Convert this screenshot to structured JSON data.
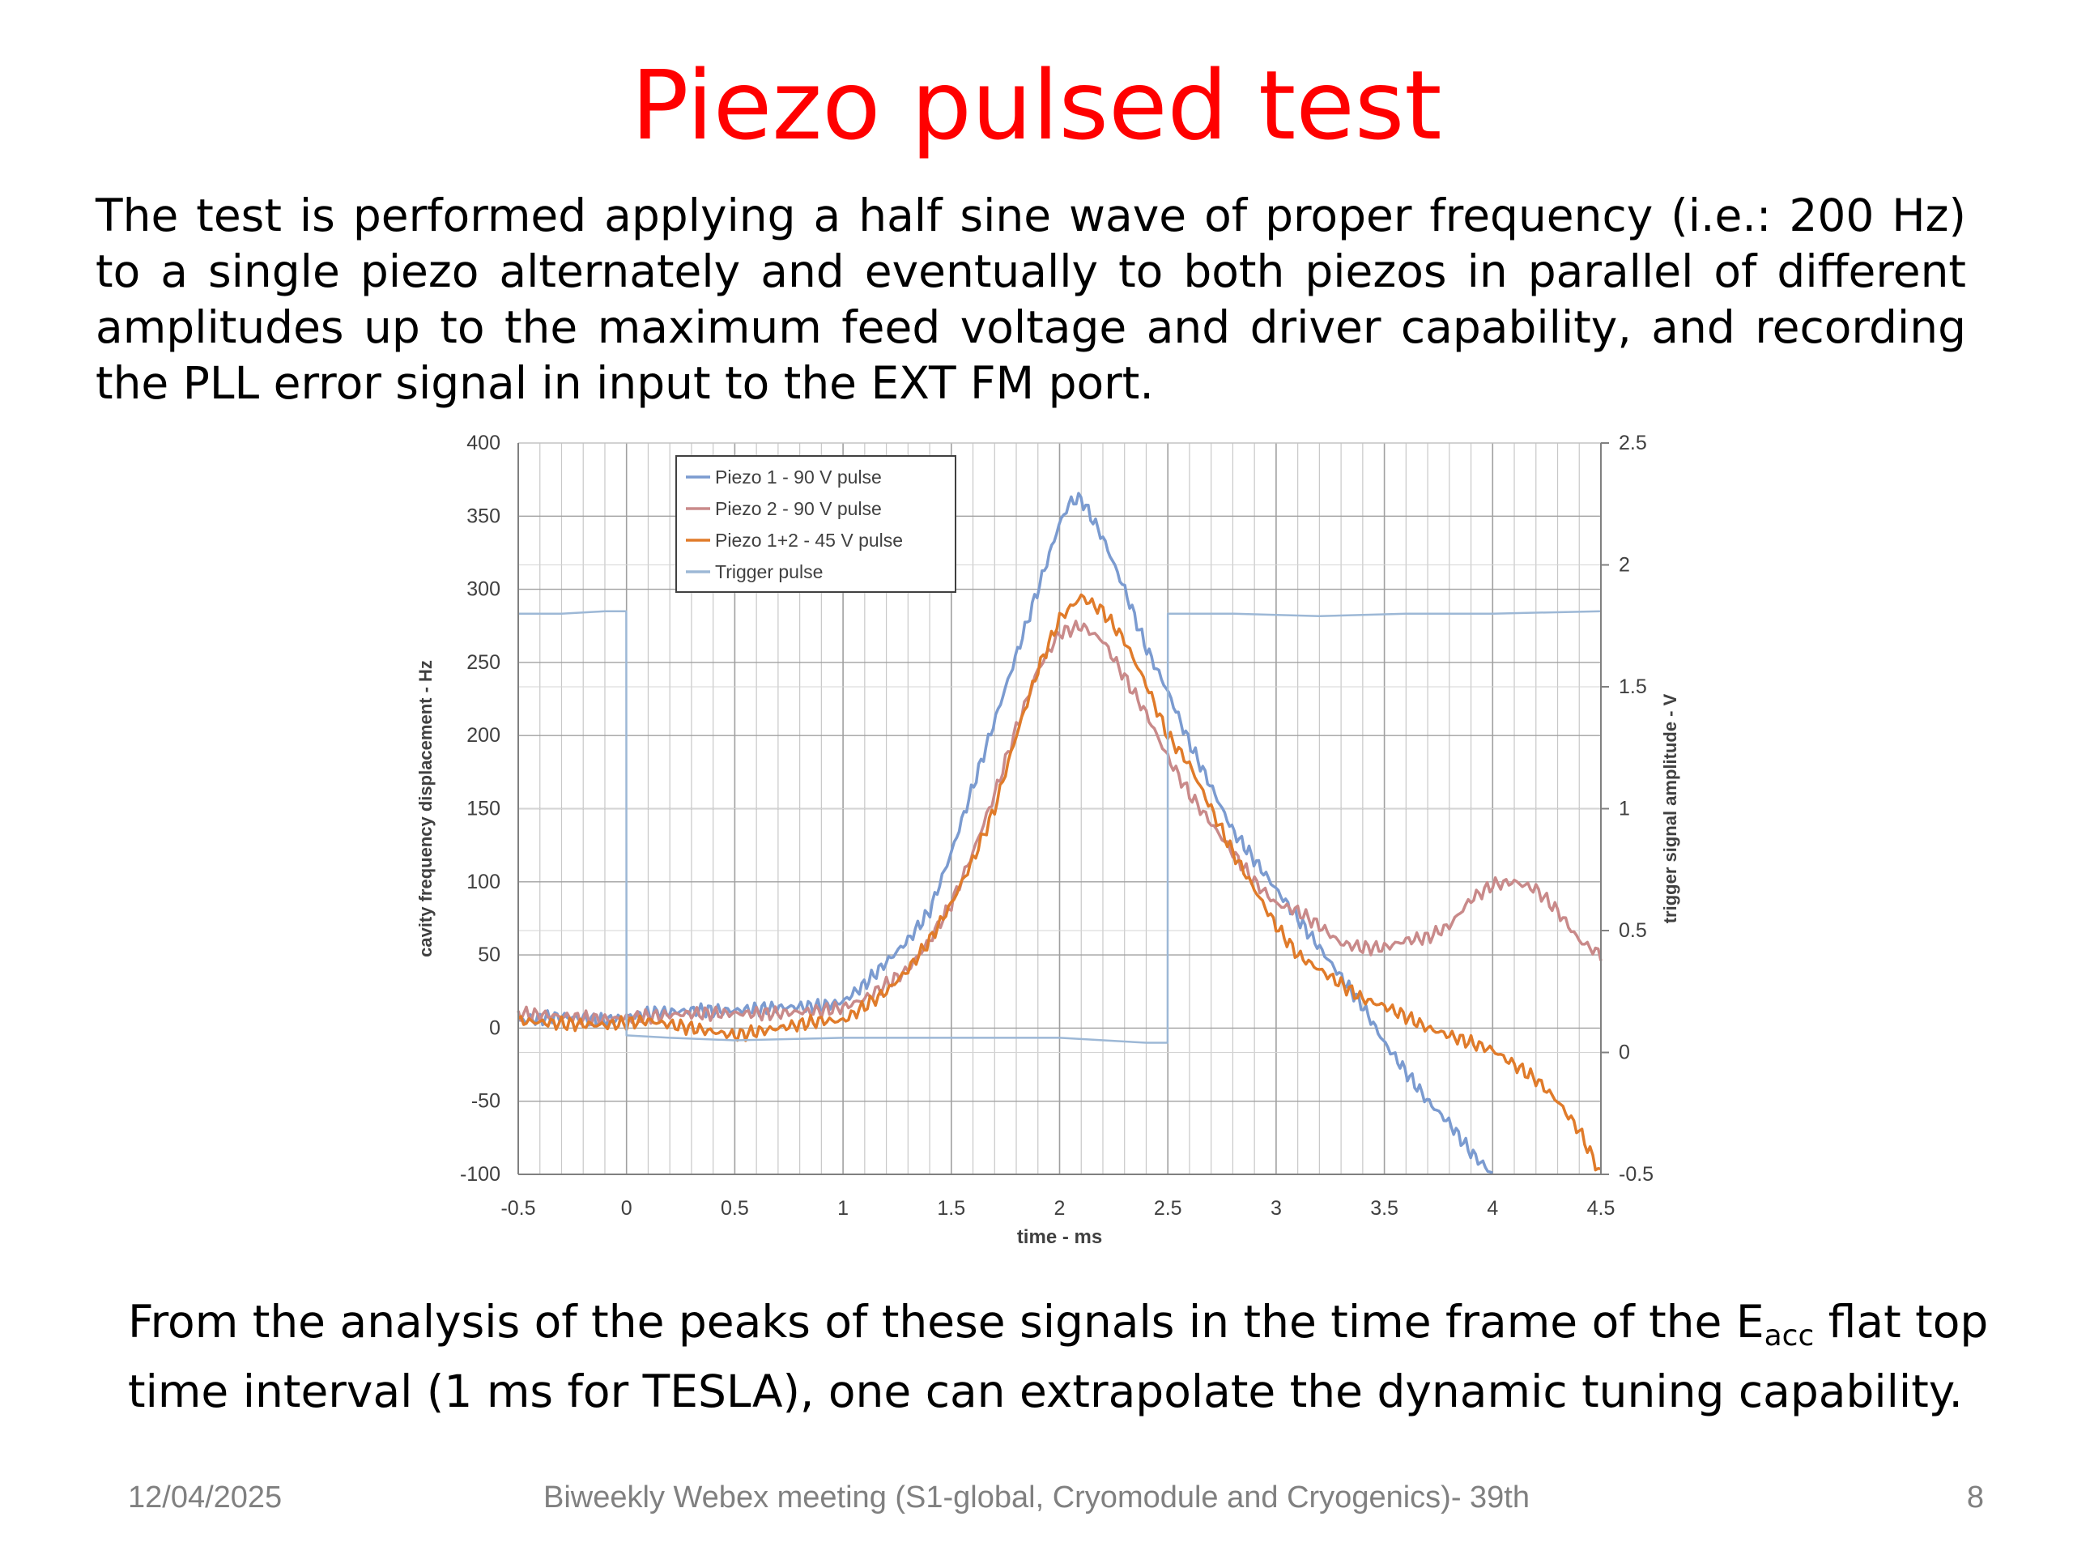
{
  "slide": {
    "title": "Piezo pulsed test",
    "intro": "The test is performed applying a half sine wave of proper frequency (i.e.: 200 Hz) to a single piezo alternately and eventually to both piezos in parallel of different amplitudes up to the maximum feed voltage and driver capability, and recording the PLL error signal in input to the EXT FM port.",
    "conclusion_pre": "From the analysis of the peaks of these signals in the time frame of the E",
    "conclusion_sub": "acc",
    "conclusion_post": " flat top time interval (1 ms for TESLA), one can extrapolate the dynamic tuning capability.",
    "footer_date": "12/04/2025",
    "footer_center": "Biweekly Webex meeting (S1-global, Cryomodule and Cryogenics)- 39th",
    "footer_page": "8"
  },
  "chart_data": {
    "type": "line",
    "title": "",
    "xlabel": "time - ms",
    "ylabel": "cavity frequency displacement - Hz",
    "y2label": "trigger signal amplitude - V",
    "xlim": [
      -0.5,
      4.5
    ],
    "ylim": [
      -100,
      400
    ],
    "y2lim": [
      -0.5,
      2.5
    ],
    "x_ticks": [
      "-0.5",
      "0",
      "0.5",
      "1",
      "1.5",
      "2",
      "2.5",
      "3",
      "3.5",
      "4",
      "4.5"
    ],
    "y_ticks": [
      "-100",
      "-50",
      "0",
      "50",
      "100",
      "150",
      "200",
      "250",
      "300",
      "350",
      "400"
    ],
    "y2_ticks": [
      "-0.5",
      "0",
      "0.5",
      "1",
      "1.5",
      "2",
      "2.5"
    ],
    "grid": true,
    "legend_position": "top-left",
    "series": [
      {
        "name": "Piezo 1 - 90 V pulse",
        "color": "#7b9bd0",
        "axis": "left",
        "x": [
          -0.5,
          -0.3,
          -0.1,
          0.1,
          0.3,
          0.5,
          0.7,
          0.9,
          1.0,
          1.1,
          1.2,
          1.3,
          1.4,
          1.5,
          1.6,
          1.7,
          1.8,
          1.9,
          2.0,
          2.05,
          2.1,
          2.2,
          2.3,
          2.4,
          2.5,
          2.6,
          2.7,
          2.8,
          2.9,
          3.0,
          3.1,
          3.2,
          3.3,
          3.4,
          3.5,
          3.6,
          3.7,
          3.8,
          3.9,
          4.0
        ],
        "y": [
          5,
          8,
          5,
          10,
          12,
          12,
          14,
          15,
          18,
          30,
          45,
          60,
          80,
          120,
          165,
          210,
          255,
          300,
          345,
          360,
          362,
          335,
          300,
          260,
          230,
          195,
          165,
          135,
          115,
          95,
          75,
          55,
          35,
          15,
          -10,
          -30,
          -50,
          -65,
          -85,
          -100
        ]
      },
      {
        "name": "Piezo 2 - 90 V pulse",
        "color": "#c98a8a",
        "axis": "left",
        "x": [
          -0.5,
          -0.3,
          -0.1,
          0.1,
          0.3,
          0.5,
          0.7,
          0.9,
          1.0,
          1.1,
          1.2,
          1.3,
          1.4,
          1.5,
          1.6,
          1.7,
          1.8,
          1.9,
          2.0,
          2.1,
          2.2,
          2.3,
          2.4,
          2.5,
          2.6,
          2.7,
          2.8,
          2.9,
          3.0,
          3.1,
          3.2,
          3.3,
          3.4,
          3.5,
          3.6,
          3.7,
          3.8,
          3.9,
          4.0,
          4.1,
          4.2,
          4.3,
          4.4,
          4.5
        ],
        "y": [
          10,
          8,
          6,
          8,
          10,
          10,
          10,
          12,
          14,
          20,
          30,
          40,
          60,
          85,
          120,
          160,
          205,
          245,
          270,
          275,
          265,
          240,
          215,
          185,
          160,
          140,
          120,
          100,
          85,
          80,
          70,
          58,
          55,
          55,
          60,
          62,
          70,
          88,
          98,
          100,
          95,
          80,
          60,
          50
        ]
      },
      {
        "name": "Piezo 1+2 - 45 V pulse",
        "color": "#e07b2a",
        "axis": "left",
        "x": [
          -0.5,
          -0.3,
          -0.1,
          0.1,
          0.3,
          0.5,
          0.7,
          0.9,
          1.0,
          1.1,
          1.2,
          1.3,
          1.4,
          1.5,
          1.6,
          1.7,
          1.8,
          1.9,
          2.0,
          2.1,
          2.2,
          2.3,
          2.4,
          2.5,
          2.6,
          2.7,
          2.8,
          2.9,
          3.0,
          3.1,
          3.2,
          3.3,
          3.4,
          3.5,
          3.6,
          3.7,
          3.8,
          3.9,
          4.0,
          4.1,
          4.2,
          4.3,
          4.4,
          4.5
        ],
        "y": [
          5,
          3,
          2,
          5,
          0,
          -5,
          0,
          5,
          5,
          15,
          25,
          40,
          60,
          85,
          115,
          150,
          200,
          245,
          280,
          295,
          285,
          265,
          235,
          200,
          180,
          150,
          120,
          95,
          70,
          50,
          40,
          30,
          20,
          15,
          8,
          0,
          -5,
          -10,
          -15,
          -25,
          -35,
          -50,
          -70,
          -100
        ]
      },
      {
        "name": "Trigger pulse",
        "color": "#9db8d6",
        "axis": "right",
        "x": [
          -0.5,
          -0.3,
          -0.1,
          -0.001,
          0.0,
          0.2,
          0.5,
          1.0,
          1.5,
          2.0,
          2.4,
          2.499,
          2.5,
          2.8,
          3.2,
          3.6,
          4.0,
          4.5
        ],
        "y": [
          1.8,
          1.8,
          1.81,
          1.81,
          0.07,
          0.06,
          0.05,
          0.06,
          0.06,
          0.06,
          0.04,
          0.04,
          1.8,
          1.8,
          1.79,
          1.8,
          1.8,
          1.81
        ]
      }
    ]
  }
}
